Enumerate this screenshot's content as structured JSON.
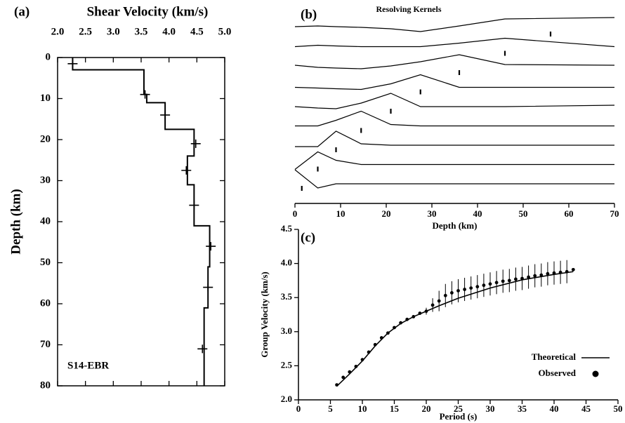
{
  "chart_data": [
    {
      "type": "step-profile",
      "label": "(a)",
      "xlabel": "Shear Velocity (km/s)",
      "ylabel": "Depth (km)",
      "annotation": "S14-EBR",
      "xlim": [
        2,
        5
      ],
      "xticks": [
        {
          "value": 2,
          "label": "2.0"
        },
        {
          "value": 2.5,
          "label": "2.5"
        },
        {
          "value": 3,
          "label": "3.0"
        },
        {
          "value": 3.5,
          "label": "3.5"
        },
        {
          "value": 4,
          "label": "4.0"
        },
        {
          "value": 4.5,
          "label": "4.5"
        },
        {
          "value": 5,
          "label": "5.0"
        }
      ],
      "ylim": [
        0,
        80
      ],
      "yticks": [
        0,
        10,
        20,
        30,
        40,
        50,
        60,
        70,
        80
      ],
      "y_inverted": true,
      "x_axis": "top",
      "series": [
        {
          "type": "line",
          "color": "#000000",
          "x": [
            2.27,
            2.27,
            3.55,
            3.55,
            3.6,
            3.6,
            3.93,
            3.93,
            4.45,
            4.45,
            4.33,
            4.33,
            4.45,
            4.45,
            4.73,
            4.73,
            4.7,
            4.7,
            4.63,
            4.63
          ],
          "y": [
            0,
            3,
            3,
            9,
            9,
            11,
            11,
            17.5,
            17.5,
            24,
            24,
            31,
            31,
            41,
            41,
            51,
            51,
            61,
            61,
            80
          ]
        },
        {
          "type": "cross",
          "color": "#000000",
          "x": [
            2.27,
            3.57,
            3.93,
            4.48,
            4.31,
            4.45,
            4.75,
            4.7,
            4.6
          ],
          "y": [
            1.5,
            9,
            14,
            21,
            27.5,
            36,
            46,
            56,
            71
          ]
        }
      ]
    },
    {
      "type": "kernels",
      "label": "(b)",
      "title": "Resolving Kernels",
      "xlabel": "Depth (km)",
      "xlim": [
        0,
        70
      ],
      "xticks": [
        0,
        10,
        20,
        30,
        40,
        50,
        60,
        70
      ],
      "x": [
        0,
        5,
        9,
        14.5,
        21,
        27.5,
        36,
        46,
        70
      ],
      "series": [
        {
          "target_depth": 56,
          "values": [
            4,
            5,
            4,
            3,
            1,
            -3,
            5,
            15,
            17
          ]
        },
        {
          "target_depth": 46,
          "values": [
            3,
            5,
            4,
            3,
            3,
            3,
            8,
            15,
            3
          ]
        },
        {
          "target_depth": 36,
          "values": [
            4,
            1,
            0,
            -1,
            3,
            9,
            19,
            5,
            4
          ]
        },
        {
          "target_depth": 27.5,
          "values": [
            0,
            -1,
            -2,
            -3,
            5,
            18,
            0,
            0,
            0
          ]
        },
        {
          "target_depth": 21,
          "values": [
            0,
            -2,
            -3,
            5,
            19,
            0,
            0,
            0,
            2
          ]
        },
        {
          "target_depth": 14.5,
          "values": [
            0,
            0,
            8,
            21,
            2,
            0,
            0,
            0,
            0
          ]
        },
        {
          "target_depth": 9,
          "values": [
            -2,
            -2,
            20,
            2,
            0,
            0,
            0,
            0,
            0
          ]
        },
        {
          "target_depth": 5,
          "values": [
            -7,
            18,
            6,
            0,
            0,
            0,
            0,
            0,
            0
          ]
        },
        {
          "target_depth": 1.5,
          "values": [
            20,
            -6,
            0,
            0,
            0,
            0,
            0,
            0,
            0
          ]
        }
      ]
    },
    {
      "type": "errorbar-line",
      "label": "(c)",
      "xlabel": "Period (s)",
      "ylabel": "Group Velocity (km/s)",
      "xlim": [
        0,
        50
      ],
      "xticks": [
        0,
        5,
        10,
        15,
        20,
        25,
        30,
        35,
        40,
        45,
        50
      ],
      "ylim": [
        2,
        4.5
      ],
      "yticks": [
        {
          "value": 2,
          "label": "2.0"
        },
        {
          "value": 2.5,
          "label": "2.5"
        },
        {
          "value": 3,
          "label": "3.0"
        },
        {
          "value": 3.5,
          "label": "3.5"
        },
        {
          "value": 4,
          "label": "4.0"
        },
        {
          "value": 4.5,
          "label": "4.5"
        }
      ],
      "legend": "lower right",
      "series": [
        {
          "name": "Theoretical",
          "type": "line",
          "color": "#000000",
          "x": [
            6,
            8,
            10,
            12,
            14,
            16,
            18,
            20,
            22,
            25,
            30,
            35,
            40,
            43
          ],
          "values": [
            2.2,
            2.38,
            2.57,
            2.79,
            2.98,
            3.12,
            3.22,
            3.3,
            3.38,
            3.49,
            3.64,
            3.76,
            3.84,
            3.88
          ]
        },
        {
          "name": "Observed",
          "type": "scatter",
          "color": "#000000",
          "x": [
            6,
            7,
            8,
            9,
            10,
            11,
            12,
            13,
            14,
            15,
            16,
            17,
            18,
            19,
            20,
            21,
            22,
            23,
            24,
            25,
            26,
            27,
            28,
            29,
            30,
            31,
            32,
            33,
            34,
            35,
            36,
            37,
            38,
            39,
            40,
            41,
            42,
            43
          ],
          "values": [
            2.22,
            2.33,
            2.41,
            2.49,
            2.59,
            2.7,
            2.81,
            2.91,
            2.98,
            3.06,
            3.13,
            3.18,
            3.22,
            3.27,
            3.3,
            3.39,
            3.45,
            3.53,
            3.57,
            3.6,
            3.62,
            3.64,
            3.66,
            3.68,
            3.7,
            3.72,
            3.74,
            3.75,
            3.77,
            3.78,
            3.8,
            3.82,
            3.83,
            3.85,
            3.86,
            3.87,
            3.88,
            3.91
          ],
          "errors": [
            0,
            0,
            0,
            0,
            0,
            0,
            0,
            0,
            0,
            0,
            0,
            0,
            0,
            0,
            0.05,
            0.1,
            0.15,
            0.17,
            0.17,
            0.17,
            0.17,
            0.17,
            0.17,
            0.17,
            0.17,
            0.17,
            0.17,
            0.17,
            0.17,
            0.17,
            0.17,
            0.17,
            0.17,
            0.17,
            0.17,
            0.17,
            0.17,
            0
          ]
        }
      ]
    }
  ]
}
